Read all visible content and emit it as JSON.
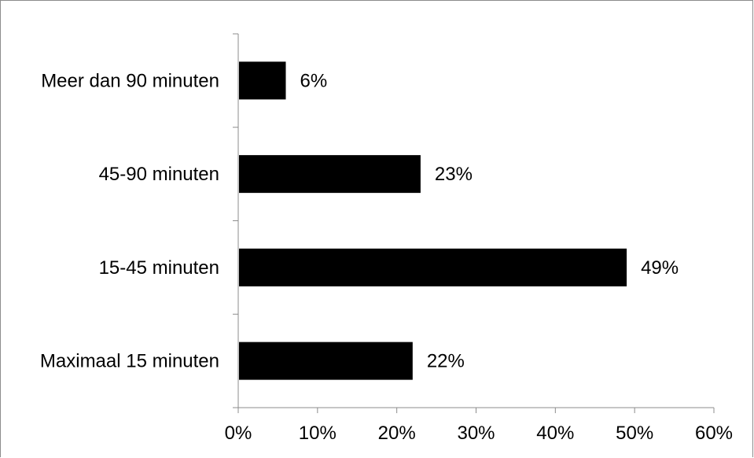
{
  "chart_data": {
    "type": "bar",
    "orientation": "horizontal",
    "categories": [
      "Meer dan 90 minuten",
      "45-90 minuten",
      "15-45 minuten",
      "Maximaal 15 minuten"
    ],
    "values": [
      6,
      23,
      49,
      22
    ],
    "data_labels": [
      "6%",
      "23%",
      "49%",
      "22%"
    ],
    "x_ticks": [
      "0%",
      "10%",
      "20%",
      "30%",
      "40%",
      "50%",
      "60%"
    ],
    "xlim": [
      0,
      60
    ],
    "title": "",
    "xlabel": "",
    "ylabel": "",
    "grid": false,
    "legend": "none",
    "bar_color": "#000000",
    "axis_color": "#8c8c8c"
  }
}
